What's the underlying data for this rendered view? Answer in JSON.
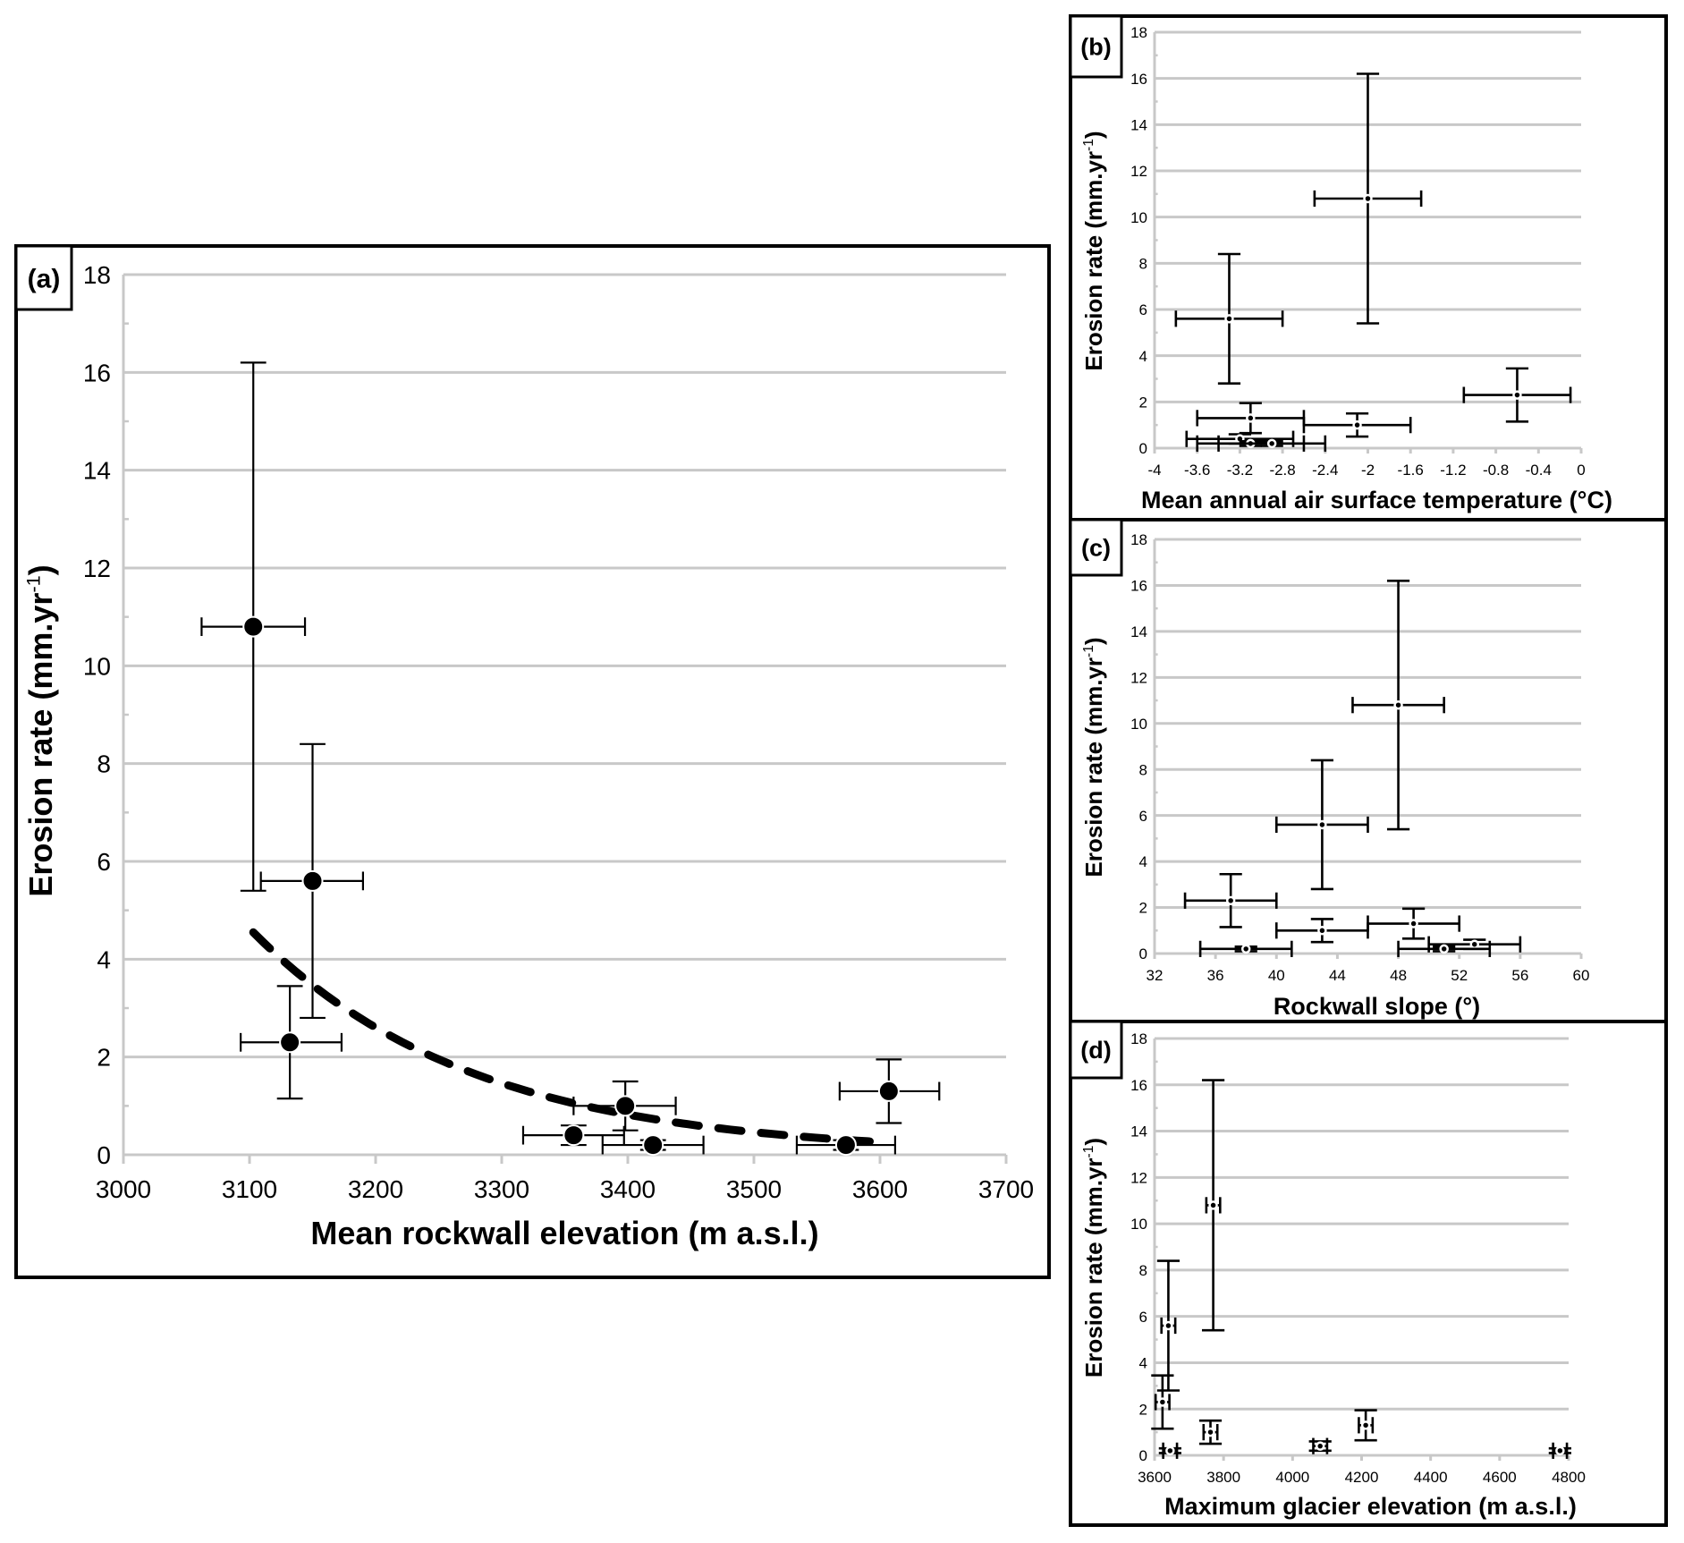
{
  "chart_data": [
    {
      "id": "a",
      "type": "scatter",
      "panel_label": "(a)",
      "xlabel": "Mean rockwall elevation (m a.s.l.)",
      "ylabel": "Erosion rate (mm.yr",
      "ylabel_sup": "-1",
      "ylabel_close": ")",
      "xlim": [
        3000,
        3700
      ],
      "ylim": [
        0,
        18
      ],
      "xticks": [
        "3000",
        "3100",
        "3200",
        "3300",
        "3400",
        "3500",
        "3600",
        "3700"
      ],
      "yticks": [
        "0",
        "2",
        "4",
        "6",
        "8",
        "10",
        "12",
        "14",
        "16",
        "18"
      ],
      "grid": true,
      "points": [
        {
          "x": 3103,
          "y": 10.8,
          "xlo": 3062,
          "xhi": 3144,
          "ylo": 5.4,
          "yhi": 16.2
        },
        {
          "x": 3150,
          "y": 5.6,
          "xlo": 3109,
          "xhi": 3190,
          "ylo": 2.8,
          "yhi": 8.4
        },
        {
          "x": 3132,
          "y": 2.3,
          "xlo": 3093,
          "xhi": 3173,
          "ylo": 1.15,
          "yhi": 3.45
        },
        {
          "x": 3398,
          "y": 1.0,
          "xlo": 3357,
          "xhi": 3438,
          "ylo": 0.5,
          "yhi": 1.5
        },
        {
          "x": 3357,
          "y": 0.4,
          "xlo": 3317,
          "xhi": 3397,
          "ylo": 0.2,
          "yhi": 0.6
        },
        {
          "x": 3420,
          "y": 0.2,
          "xlo": 3380,
          "xhi": 3460,
          "ylo": 0.1,
          "yhi": 0.3
        },
        {
          "x": 3573,
          "y": 0.2,
          "xlo": 3534,
          "xhi": 3612,
          "ylo": 0.1,
          "yhi": 0.3
        },
        {
          "x": 3607,
          "y": 1.3,
          "xlo": 3568,
          "xhi": 3647,
          "ylo": 0.65,
          "yhi": 1.95
        }
      ],
      "trendline": {
        "type": "exponential",
        "x_start": 3103,
        "y_start": 4.55,
        "x_end": 3607,
        "y_end": 0.25,
        "style": "dashed"
      },
      "marker_size": "large"
    },
    {
      "id": "b",
      "type": "scatter",
      "panel_label": "(b)",
      "xlabel": "Mean annual air surface temperature (°C)",
      "ylabel": "Erosion rate (mm.yr",
      "ylabel_sup": "-1",
      "ylabel_close": ")",
      "xlim": [
        -4,
        0
      ],
      "ylim": [
        0,
        18
      ],
      "xticks": [
        "-4",
        "-3.6",
        "-3.2",
        "-2.8",
        "-2.4",
        "-2",
        "-1.6",
        "-1.2",
        "-0.8",
        "-0.4",
        "0"
      ],
      "yticks": [
        "0",
        "2",
        "4",
        "6",
        "8",
        "10",
        "12",
        "14",
        "16",
        "18"
      ],
      "grid": true,
      "points": [
        {
          "x": -2.0,
          "y": 10.8,
          "xlo": -2.5,
          "xhi": -1.5,
          "ylo": 5.4,
          "yhi": 16.2
        },
        {
          "x": -3.3,
          "y": 5.6,
          "xlo": -3.8,
          "xhi": -2.8,
          "ylo": 2.8,
          "yhi": 8.4
        },
        {
          "x": -0.6,
          "y": 2.3,
          "xlo": -1.1,
          "xhi": -0.1,
          "ylo": 1.15,
          "yhi": 3.45
        },
        {
          "x": -3.1,
          "y": 1.3,
          "xlo": -3.6,
          "xhi": -2.6,
          "ylo": 0.65,
          "yhi": 1.95
        },
        {
          "x": -2.1,
          "y": 1.0,
          "xlo": -2.6,
          "xhi": -1.6,
          "ylo": 0.5,
          "yhi": 1.5
        },
        {
          "x": -3.2,
          "y": 0.4,
          "xlo": -3.7,
          "xhi": -2.7,
          "ylo": 0.2,
          "yhi": 0.6
        },
        {
          "x": -3.1,
          "y": 0.2,
          "xlo": -3.6,
          "xhi": -2.6,
          "ylo": 0.1,
          "yhi": 0.3
        },
        {
          "x": -2.9,
          "y": 0.2,
          "xlo": -3.4,
          "xhi": -2.4,
          "ylo": 0.1,
          "yhi": 0.3
        }
      ],
      "marker_size": "small"
    },
    {
      "id": "c",
      "type": "scatter",
      "panel_label": "(c)",
      "xlabel": "Rockwall slope (°)",
      "ylabel": "Erosion rate (mm.yr",
      "ylabel_sup": "-1",
      "ylabel_close": ")",
      "xlim": [
        32,
        60
      ],
      "ylim": [
        0,
        18
      ],
      "xticks": [
        "32",
        "36",
        "40",
        "44",
        "48",
        "52",
        "56",
        "60"
      ],
      "yticks": [
        "0",
        "2",
        "4",
        "6",
        "8",
        "10",
        "12",
        "14",
        "16",
        "18"
      ],
      "grid": true,
      "points": [
        {
          "x": 48,
          "y": 10.8,
          "xlo": 45,
          "xhi": 51,
          "ylo": 5.4,
          "yhi": 16.2
        },
        {
          "x": 43,
          "y": 5.6,
          "xlo": 40,
          "xhi": 46,
          "ylo": 2.8,
          "yhi": 8.4
        },
        {
          "x": 37,
          "y": 2.3,
          "xlo": 34,
          "xhi": 40,
          "ylo": 1.15,
          "yhi": 3.45
        },
        {
          "x": 49,
          "y": 1.3,
          "xlo": 46,
          "xhi": 52,
          "ylo": 0.65,
          "yhi": 1.95
        },
        {
          "x": 43,
          "y": 1.0,
          "xlo": 40,
          "xhi": 46,
          "ylo": 0.5,
          "yhi": 1.5
        },
        {
          "x": 53,
          "y": 0.4,
          "xlo": 50,
          "xhi": 56,
          "ylo": 0.2,
          "yhi": 0.6
        },
        {
          "x": 38,
          "y": 0.2,
          "xlo": 35,
          "xhi": 41,
          "ylo": 0.1,
          "yhi": 0.3
        },
        {
          "x": 51,
          "y": 0.2,
          "xlo": 48,
          "xhi": 54,
          "ylo": 0.1,
          "yhi": 0.3
        }
      ],
      "marker_size": "small"
    },
    {
      "id": "d",
      "type": "scatter",
      "panel_label": "(d)",
      "xlabel": "Maximum glacier elevation (m a.s.l.)",
      "ylabel": "Erosion rate (mm.yr",
      "ylabel_sup": "-1",
      "ylabel_close": ")",
      "xlim": [
        3600,
        4800
      ],
      "ylim": [
        0,
        18
      ],
      "xticks": [
        "3600",
        "3800",
        "4000",
        "4200",
        "4400",
        "4600",
        "4800"
      ],
      "yticks": [
        "0",
        "2",
        "4",
        "6",
        "8",
        "10",
        "12",
        "14",
        "16",
        "18"
      ],
      "grid": true,
      "points": [
        {
          "x": 3770,
          "y": 10.8,
          "xlo": 3750,
          "xhi": 3790,
          "ylo": 5.4,
          "yhi": 16.2
        },
        {
          "x": 3640,
          "y": 5.6,
          "xlo": 3620,
          "xhi": 3660,
          "ylo": 2.8,
          "yhi": 8.4
        },
        {
          "x": 3623,
          "y": 2.3,
          "xlo": 3603,
          "xhi": 3643,
          "ylo": 1.15,
          "yhi": 3.45
        },
        {
          "x": 4212,
          "y": 1.3,
          "xlo": 4192,
          "xhi": 4232,
          "ylo": 0.65,
          "yhi": 1.95
        },
        {
          "x": 3762,
          "y": 1.0,
          "xlo": 3742,
          "xhi": 3782,
          "ylo": 0.5,
          "yhi": 1.5
        },
        {
          "x": 4080,
          "y": 0.4,
          "xlo": 4060,
          "xhi": 4100,
          "ylo": 0.2,
          "yhi": 0.6
        },
        {
          "x": 3645,
          "y": 0.2,
          "xlo": 3625,
          "xhi": 3665,
          "ylo": 0.1,
          "yhi": 0.3
        },
        {
          "x": 4775,
          "y": 0.2,
          "xlo": 4755,
          "xhi": 4795,
          "ylo": 0.1,
          "yhi": 0.3
        }
      ],
      "marker_size": "small"
    }
  ],
  "colors": {
    "grid": "#c8c8c8",
    "marker": "#000000",
    "frame": "#000000",
    "background": "#ffffff"
  }
}
